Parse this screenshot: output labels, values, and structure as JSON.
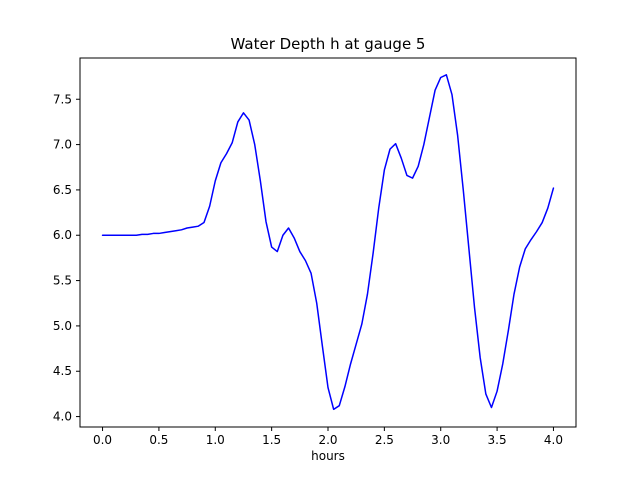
{
  "chart_data": {
    "type": "line",
    "title": "Water Depth h at gauge 5",
    "xlabel": "hours",
    "ylabel": "",
    "xlim": [
      -0.2,
      4.2
    ],
    "ylim": [
      3.885,
      7.955
    ],
    "xticks": [
      0.0,
      0.5,
      1.0,
      1.5,
      2.0,
      2.5,
      3.0,
      3.5,
      4.0
    ],
    "yticks": [
      4.0,
      4.5,
      5.0,
      5.5,
      6.0,
      6.5,
      7.0,
      7.5
    ],
    "grid": false,
    "legend": "none",
    "line_color": "#0000ff",
    "line_width": 1.5,
    "x": [
      0.0,
      0.05,
      0.1,
      0.15,
      0.2,
      0.25,
      0.3,
      0.35,
      0.4,
      0.45,
      0.5,
      0.55,
      0.6,
      0.65,
      0.7,
      0.75,
      0.8,
      0.85,
      0.9,
      0.95,
      1.0,
      1.05,
      1.1,
      1.15,
      1.2,
      1.25,
      1.3,
      1.35,
      1.4,
      1.45,
      1.5,
      1.55,
      1.6,
      1.65,
      1.7,
      1.75,
      1.8,
      1.85,
      1.9,
      1.95,
      2.0,
      2.05,
      2.1,
      2.15,
      2.2,
      2.25,
      2.3,
      2.35,
      2.4,
      2.45,
      2.5,
      2.55,
      2.6,
      2.65,
      2.7,
      2.75,
      2.8,
      2.85,
      2.9,
      2.95,
      3.0,
      3.05,
      3.1,
      3.15,
      3.2,
      3.25,
      3.3,
      3.35,
      3.4,
      3.45,
      3.5,
      3.55,
      3.6,
      3.65,
      3.7,
      3.75,
      3.8,
      3.85,
      3.9,
      3.95,
      4.0
    ],
    "y": [
      6.0,
      6.0,
      6.0,
      6.0,
      6.0,
      6.0,
      6.0,
      6.01,
      6.01,
      6.02,
      6.02,
      6.03,
      6.04,
      6.05,
      6.06,
      6.08,
      6.09,
      6.1,
      6.14,
      6.32,
      6.6,
      6.8,
      6.9,
      7.02,
      7.25,
      7.35,
      7.27,
      7.0,
      6.6,
      6.15,
      5.87,
      5.82,
      6.0,
      6.08,
      5.97,
      5.82,
      5.72,
      5.58,
      5.25,
      4.78,
      4.32,
      4.08,
      4.12,
      4.33,
      4.58,
      4.8,
      5.02,
      5.35,
      5.8,
      6.3,
      6.72,
      6.95,
      7.01,
      6.85,
      6.66,
      6.63,
      6.76,
      7.0,
      7.3,
      7.6,
      7.74,
      7.77,
      7.55,
      7.1,
      6.5,
      5.85,
      5.2,
      4.65,
      4.25,
      4.1,
      4.28,
      4.58,
      4.95,
      5.35,
      5.65,
      5.85,
      5.95,
      6.04,
      6.14,
      6.3,
      6.52
    ]
  }
}
